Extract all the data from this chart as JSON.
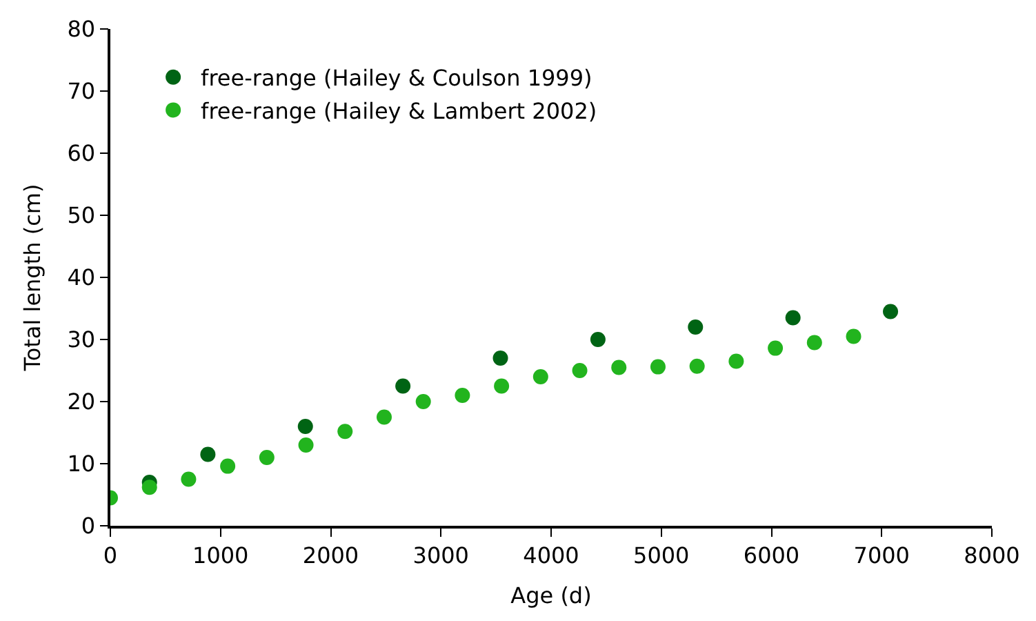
{
  "chart_data": {
    "type": "scatter",
    "xlabel": "Age (d)",
    "ylabel": "Total length (cm)",
    "xlim": [
      0,
      8000
    ],
    "xticks": [
      0,
      1000,
      2000,
      3000,
      4000,
      5000,
      6000,
      7000,
      8000
    ],
    "ylim": [
      0,
      80
    ],
    "yticks": [
      0,
      10,
      20,
      30,
      40,
      50,
      60,
      70,
      80
    ],
    "legend": "top left",
    "marker": "circle",
    "series": [
      {
        "name": "free-range (Hailey & Coulson 1999)",
        "color": "#006414",
        "x": [
          355,
          885,
          1770,
          2655,
          3540,
          4425,
          5310,
          6195,
          7080
        ],
        "values": [
          7,
          11.5,
          16,
          22.5,
          27,
          30,
          32,
          33.5,
          34.5
        ]
      },
      {
        "name": "free-range (Hailey & Lambert 2002)",
        "color": "#22b41e",
        "x": [
          0,
          355,
          710,
          1065,
          1420,
          1775,
          2130,
          2485,
          2840,
          3195,
          3550,
          3905,
          4260,
          4615,
          4970,
          5325,
          5680,
          6035,
          6390,
          6745
        ],
        "values": [
          4.5,
          6.2,
          7.5,
          9.6,
          11,
          13,
          15.2,
          17.5,
          20,
          21,
          22.5,
          24,
          25,
          25.5,
          25.6,
          25.7,
          26.5,
          28.6,
          29.5,
          30.5
        ]
      }
    ]
  }
}
